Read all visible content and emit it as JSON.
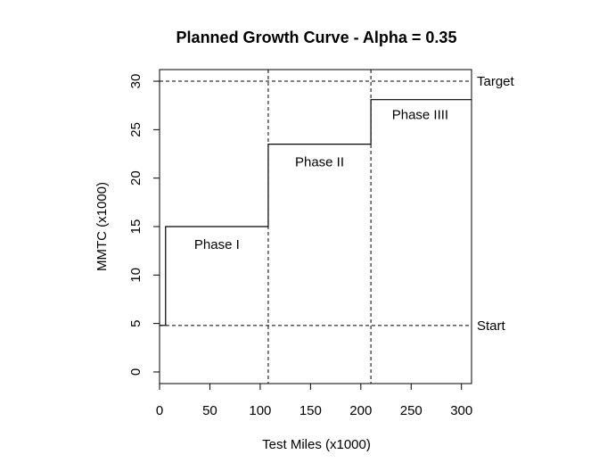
{
  "chart_data": {
    "type": "line",
    "title": "Planned Growth Curve - Alpha = 0.35",
    "xlabel": "Test Miles (x1000)",
    "ylabel": "MMTC (x1000)",
    "xlim": [
      0,
      310
    ],
    "ylim": [
      -1.2,
      31.2
    ],
    "x_ticks": [
      0,
      50,
      100,
      150,
      200,
      250,
      300
    ],
    "y_ticks": [
      0,
      5,
      10,
      15,
      20,
      25,
      30
    ],
    "grid": false,
    "series": [
      {
        "steps": [
          {
            "x": 0,
            "y": 4.8
          },
          {
            "x": 6,
            "y": 4.8
          },
          {
            "x": 6,
            "y": 15
          },
          {
            "x": 108,
            "y": 15
          },
          {
            "x": 108,
            "y": 23.5
          },
          {
            "x": 210,
            "y": 23.5
          },
          {
            "x": 210,
            "y": 28.1
          },
          {
            "x": 310,
            "y": 28.1
          }
        ]
      }
    ],
    "reference_lines": {
      "horizontal": [
        {
          "y": 30,
          "label": "Target"
        },
        {
          "y": 4.8,
          "label": "Start"
        }
      ],
      "vertical": [
        108,
        210
      ]
    },
    "annotations": [
      {
        "text": "Phase I",
        "x": 57,
        "y": 12.7
      },
      {
        "text": "Phase II",
        "x": 159,
        "y": 21.2
      },
      {
        "text": "Phase IIII",
        "x": 259,
        "y": 26.1
      }
    ]
  }
}
